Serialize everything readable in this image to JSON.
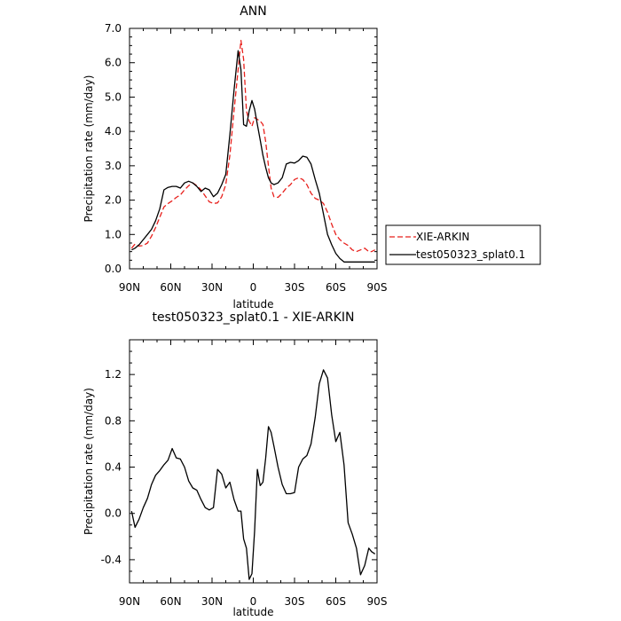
{
  "chart_data": [
    {
      "type": "line",
      "title": "ANN",
      "xlabel": "latitude",
      "ylabel": "Precipitation rate (mm/day)",
      "xlim": [
        -90,
        90
      ],
      "ylim": [
        0,
        7
      ],
      "x_ticks": [
        -90,
        -60,
        -30,
        0,
        30,
        60,
        90
      ],
      "x_tick_labels": [
        "90N",
        "60N",
        "30N",
        "0",
        "30S",
        "60S",
        "90S"
      ],
      "y_ticks": [
        0,
        1,
        2,
        3,
        4,
        5,
        6,
        7
      ],
      "y_tick_labels": [
        "0.0",
        "1.0",
        "2.0",
        "3.0",
        "4.0",
        "5.0",
        "6.0",
        "7.0"
      ],
      "legend_position": "right",
      "series": [
        {
          "name": "XIE-ARKIN",
          "color": "#e8201c",
          "dash": "dashed",
          "points": [
            [
              -88.5,
              0.6
            ],
            [
              -86,
              0.72
            ],
            [
              -83,
              0.66
            ],
            [
              -80,
              0.68
            ],
            [
              -77,
              0.75
            ],
            [
              -74,
              0.95
            ],
            [
              -71,
              1.2
            ],
            [
              -68,
              1.5
            ],
            [
              -65,
              1.8
            ],
            [
              -62,
              1.9
            ],
            [
              -59,
              1.98
            ],
            [
              -56,
              2.08
            ],
            [
              -53,
              2.15
            ],
            [
              -50,
              2.3
            ],
            [
              -47,
              2.42
            ],
            [
              -44,
              2.5
            ],
            [
              -41,
              2.42
            ],
            [
              -38,
              2.3
            ],
            [
              -35,
              2.12
            ],
            [
              -32,
              1.95
            ],
            [
              -29,
              1.9
            ],
            [
              -26,
              1.92
            ],
            [
              -23,
              2.1
            ],
            [
              -20,
              2.45
            ],
            [
              -17,
              3.3
            ],
            [
              -14,
              4.6
            ],
            [
              -11,
              5.8
            ],
            [
              -9,
              6.65
            ],
            [
              -7,
              6.1
            ],
            [
              -5,
              4.6
            ],
            [
              -3,
              4.3
            ],
            [
              -1,
              4.15
            ],
            [
              1,
              4.4
            ],
            [
              3,
              4.35
            ],
            [
              5,
              4.3
            ],
            [
              7,
              4.2
            ],
            [
              9,
              3.7
            ],
            [
              11,
              3.0
            ],
            [
              13,
              2.35
            ],
            [
              15,
              2.1
            ],
            [
              18,
              2.08
            ],
            [
              21,
              2.2
            ],
            [
              24,
              2.35
            ],
            [
              27,
              2.45
            ],
            [
              30,
              2.6
            ],
            [
              33,
              2.65
            ],
            [
              36,
              2.6
            ],
            [
              39,
              2.45
            ],
            [
              42,
              2.2
            ],
            [
              45,
              2.05
            ],
            [
              48,
              2.0
            ],
            [
              51,
              1.9
            ],
            [
              54,
              1.65
            ],
            [
              57,
              1.3
            ],
            [
              60,
              1.0
            ],
            [
              63,
              0.85
            ],
            [
              66,
              0.75
            ],
            [
              69,
              0.68
            ],
            [
              72,
              0.55
            ],
            [
              75,
              0.5
            ],
            [
              78,
              0.55
            ],
            [
              81,
              0.6
            ],
            [
              84,
              0.5
            ],
            [
              86,
              0.5
            ],
            [
              88.5,
              0.55
            ]
          ]
        },
        {
          "name": "test050323_splat0.1",
          "color": "#000000",
          "dash": "solid",
          "points": [
            [
              -88.5,
              0.55
            ],
            [
              -86,
              0.6
            ],
            [
              -83,
              0.7
            ],
            [
              -80,
              0.85
            ],
            [
              -77,
              1.0
            ],
            [
              -74,
              1.15
            ],
            [
              -71,
              1.4
            ],
            [
              -68,
              1.75
            ],
            [
              -65,
              2.3
            ],
            [
              -62,
              2.37
            ],
            [
              -59,
              2.4
            ],
            [
              -56,
              2.4
            ],
            [
              -53,
              2.35
            ],
            [
              -50,
              2.5
            ],
            [
              -47,
              2.55
            ],
            [
              -44,
              2.5
            ],
            [
              -41,
              2.4
            ],
            [
              -38,
              2.25
            ],
            [
              -35,
              2.35
            ],
            [
              -32,
              2.3
            ],
            [
              -29,
              2.1
            ],
            [
              -26,
              2.2
            ],
            [
              -23,
              2.45
            ],
            [
              -20,
              2.75
            ],
            [
              -17,
              3.9
            ],
            [
              -14,
              5.2
            ],
            [
              -11,
              6.35
            ],
            [
              -9,
              5.8
            ],
            [
              -7,
              4.2
            ],
            [
              -5,
              4.15
            ],
            [
              -3,
              4.6
            ],
            [
              -1,
              4.9
            ],
            [
              1,
              4.65
            ],
            [
              3,
              4.2
            ],
            [
              5,
              3.75
            ],
            [
              7,
              3.3
            ],
            [
              9,
              2.95
            ],
            [
              11,
              2.65
            ],
            [
              13,
              2.5
            ],
            [
              15,
              2.45
            ],
            [
              18,
              2.5
            ],
            [
              21,
              2.65
            ],
            [
              24,
              3.05
            ],
            [
              27,
              3.1
            ],
            [
              30,
              3.08
            ],
            [
              33,
              3.15
            ],
            [
              36,
              3.28
            ],
            [
              39,
              3.25
            ],
            [
              42,
              3.05
            ],
            [
              45,
              2.6
            ],
            [
              48,
              2.2
            ],
            [
              51,
              1.6
            ],
            [
              54,
              1.0
            ],
            [
              57,
              0.7
            ],
            [
              60,
              0.45
            ],
            [
              63,
              0.3
            ],
            [
              66,
              0.2
            ],
            [
              69,
              0.2
            ],
            [
              72,
              0.2
            ],
            [
              75,
              0.2
            ],
            [
              78,
              0.2
            ],
            [
              81,
              0.2
            ],
            [
              84,
              0.2
            ],
            [
              86,
              0.2
            ],
            [
              88.5,
              0.2
            ]
          ]
        }
      ]
    },
    {
      "type": "line",
      "title": "test050323_splat0.1 - XIE-ARKIN",
      "xlabel": "latitude",
      "ylabel": "Precipitation rate (mm/day)",
      "xlim": [
        -90,
        90
      ],
      "ylim": [
        -0.6,
        1.5
      ],
      "x_ticks": [
        -90,
        -60,
        -30,
        0,
        30,
        60,
        90
      ],
      "x_tick_labels": [
        "90N",
        "60N",
        "30N",
        "0",
        "30S",
        "60S",
        "90S"
      ],
      "y_ticks": [
        -0.4,
        0,
        0.4,
        0.8,
        1.2
      ],
      "y_tick_labels": [
        "-0.4",
        "0.0",
        "0.4",
        "0.8",
        "1.2"
      ],
      "series": [
        {
          "color": "#000000",
          "dash": "solid",
          "points": [
            [
              -88.5,
              0.02
            ],
            [
              -86,
              -0.12
            ],
            [
              -83,
              -0.05
            ],
            [
              -80,
              0.05
            ],
            [
              -77,
              0.13
            ],
            [
              -74,
              0.25
            ],
            [
              -71,
              0.33
            ],
            [
              -68,
              0.37
            ],
            [
              -65,
              0.42
            ],
            [
              -62,
              0.46
            ],
            [
              -59,
              0.56
            ],
            [
              -56,
              0.48
            ],
            [
              -53,
              0.47
            ],
            [
              -50,
              0.4
            ],
            [
              -47,
              0.28
            ],
            [
              -44,
              0.22
            ],
            [
              -41,
              0.2
            ],
            [
              -38,
              0.12
            ],
            [
              -35,
              0.05
            ],
            [
              -32,
              0.03
            ],
            [
              -29,
              0.05
            ],
            [
              -26,
              0.38
            ],
            [
              -23,
              0.34
            ],
            [
              -20,
              0.22
            ],
            [
              -17,
              0.27
            ],
            [
              -14,
              0.12
            ],
            [
              -11,
              0.02
            ],
            [
              -9,
              0.02
            ],
            [
              -7,
              -0.22
            ],
            [
              -5,
              -0.3
            ],
            [
              -3,
              -0.57
            ],
            [
              -1,
              -0.52
            ],
            [
              1,
              -0.15
            ],
            [
              3,
              0.38
            ],
            [
              5,
              0.24
            ],
            [
              7,
              0.27
            ],
            [
              9,
              0.48
            ],
            [
              11,
              0.75
            ],
            [
              13,
              0.7
            ],
            [
              15,
              0.58
            ],
            [
              18,
              0.4
            ],
            [
              21,
              0.25
            ],
            [
              24,
              0.17
            ],
            [
              27,
              0.17
            ],
            [
              30,
              0.18
            ],
            [
              33,
              0.4
            ],
            [
              36,
              0.47
            ],
            [
              39,
              0.5
            ],
            [
              42,
              0.6
            ],
            [
              45,
              0.83
            ],
            [
              48,
              1.12
            ],
            [
              51,
              1.24
            ],
            [
              54,
              1.17
            ],
            [
              57,
              0.85
            ],
            [
              60,
              0.62
            ],
            [
              63,
              0.7
            ],
            [
              66,
              0.42
            ],
            [
              69,
              -0.08
            ],
            [
              72,
              -0.18
            ],
            [
              75,
              -0.3
            ],
            [
              78,
              -0.53
            ],
            [
              81,
              -0.45
            ],
            [
              84,
              -0.3
            ],
            [
              86,
              -0.33
            ],
            [
              88.5,
              -0.35
            ]
          ]
        }
      ]
    }
  ]
}
